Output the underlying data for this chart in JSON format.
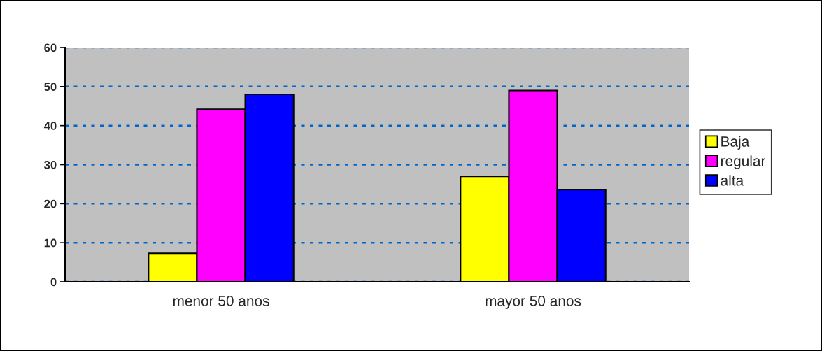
{
  "chart_data": {
    "type": "bar",
    "categories": [
      "menor 50 anos",
      "mayor 50 anos"
    ],
    "series": [
      {
        "name": "Baja",
        "color": "#ffff00",
        "values": [
          7.3,
          27.0
        ]
      },
      {
        "name": "regular",
        "color": "#ff00ff",
        "values": [
          44.2,
          49.0
        ]
      },
      {
        "name": "alta",
        "color": "#0000ff",
        "values": [
          48.0,
          23.6
        ]
      }
    ],
    "ylim": [
      0,
      60
    ],
    "yticks": [
      0,
      10,
      20,
      30,
      40,
      50,
      60
    ],
    "grid": "y",
    "legend": "right"
  }
}
